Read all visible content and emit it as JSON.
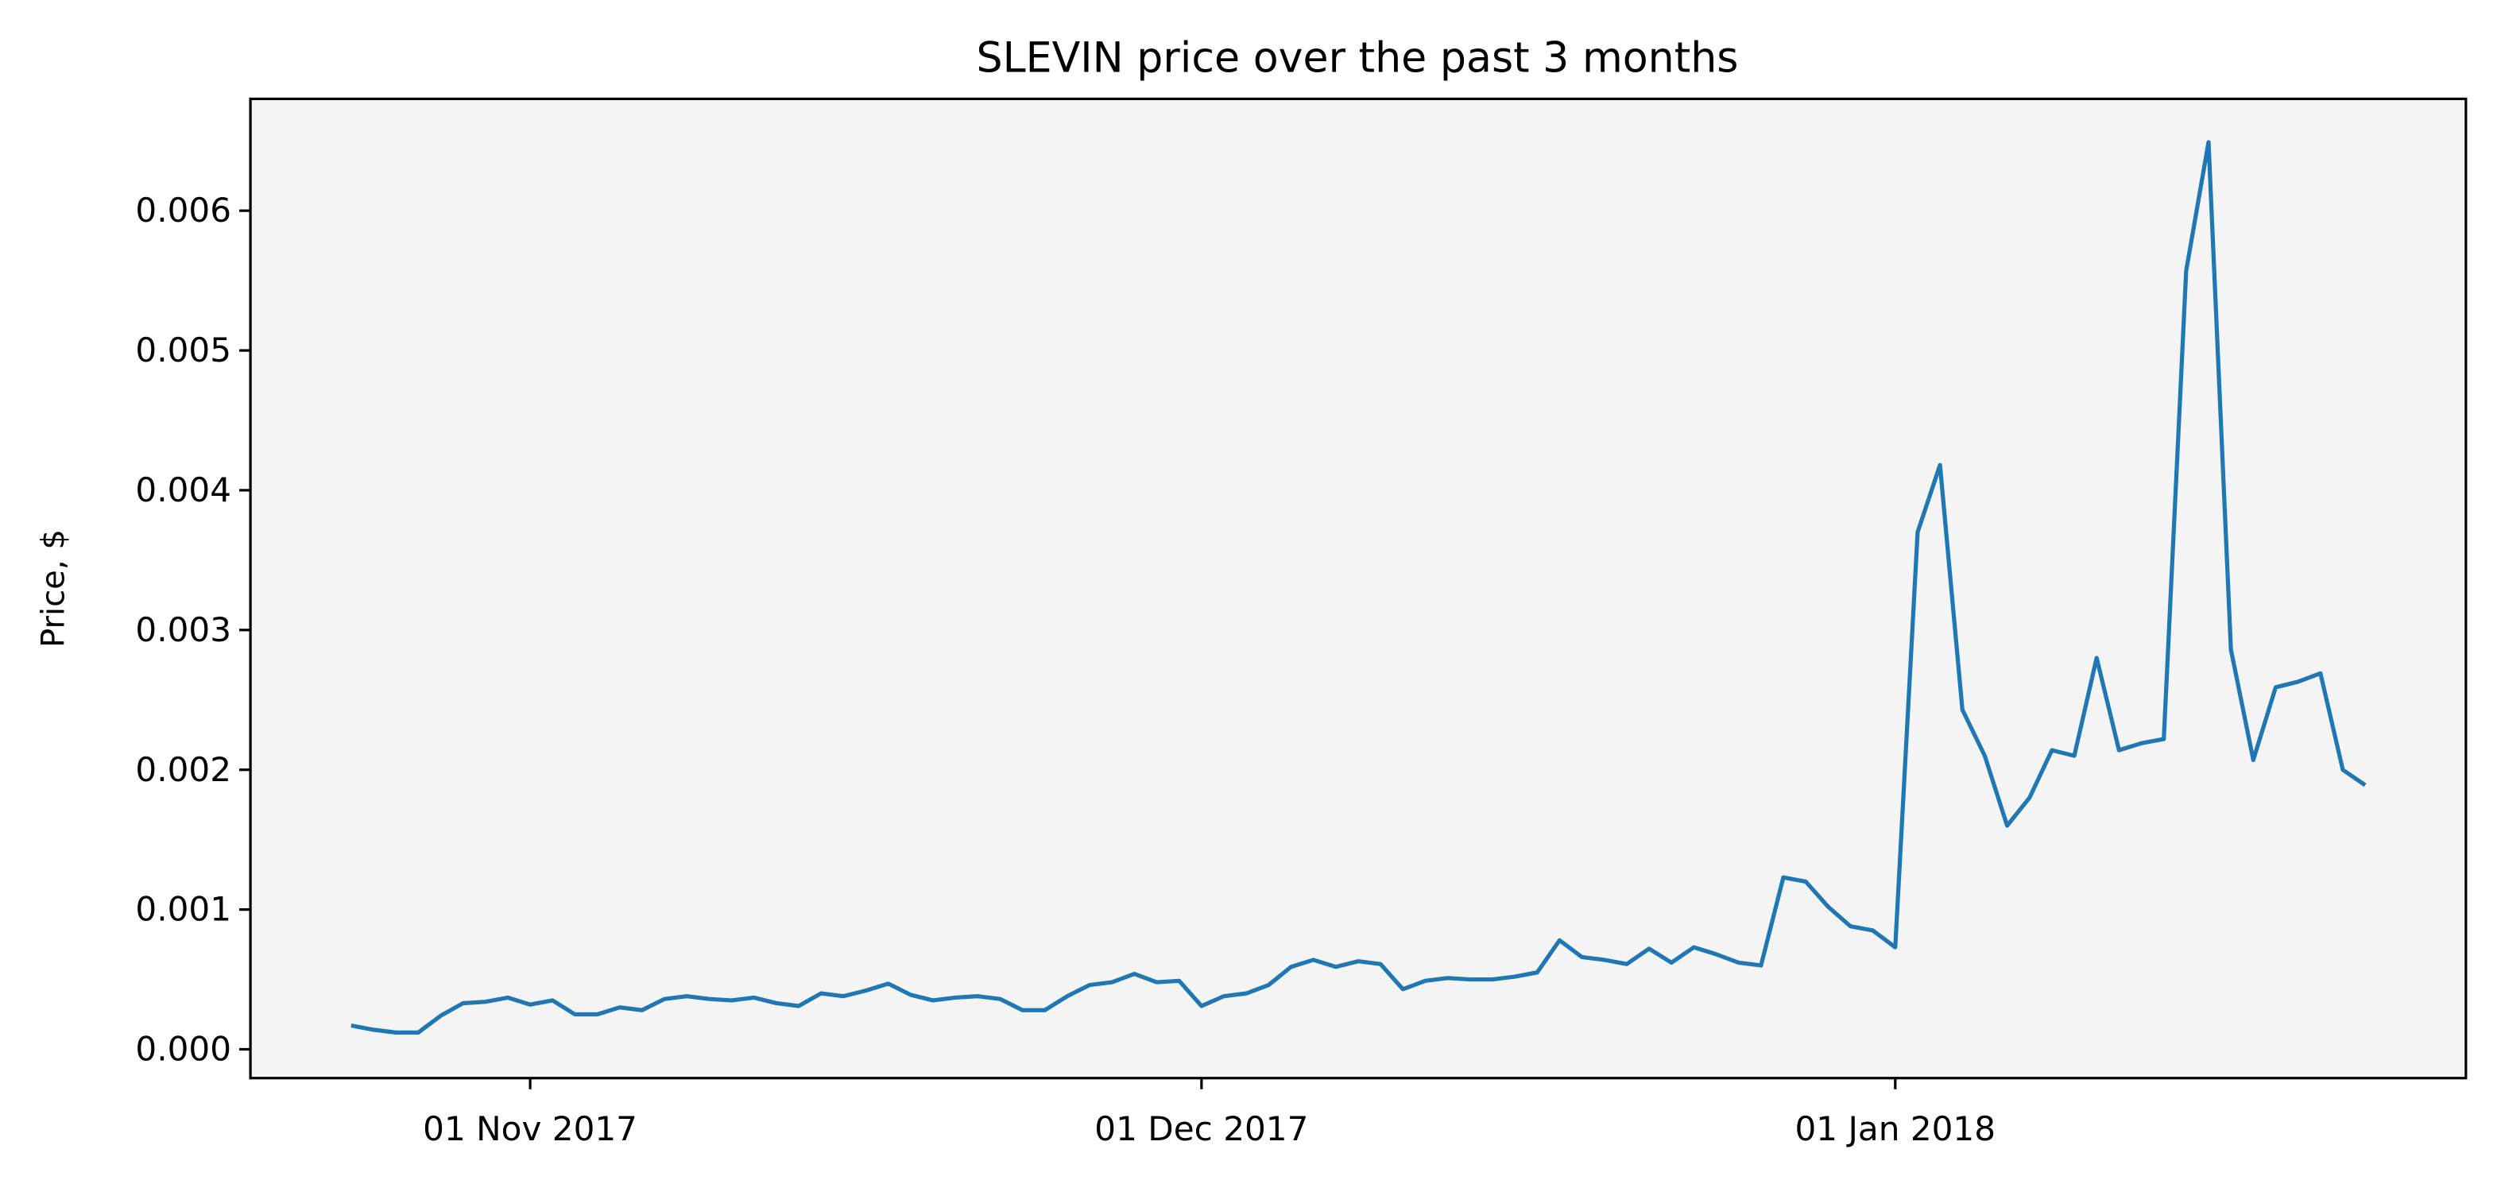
{
  "chart_data": {
    "type": "line",
    "title": "SLEVIN price over the past 3 months",
    "y_label": "Price, $",
    "x": [
      "2017-10-24",
      "2017-10-25",
      "2017-10-26",
      "2017-10-27",
      "2017-10-28",
      "2017-10-29",
      "2017-10-30",
      "2017-10-31",
      "2017-11-01",
      "2017-11-02",
      "2017-11-03",
      "2017-11-04",
      "2017-11-05",
      "2017-11-06",
      "2017-11-07",
      "2017-11-08",
      "2017-11-09",
      "2017-11-10",
      "2017-11-11",
      "2017-11-12",
      "2017-11-13",
      "2017-11-14",
      "2017-11-15",
      "2017-11-16",
      "2017-11-17",
      "2017-11-18",
      "2017-11-19",
      "2017-11-20",
      "2017-11-21",
      "2017-11-22",
      "2017-11-23",
      "2017-11-24",
      "2017-11-25",
      "2017-11-26",
      "2017-11-27",
      "2017-11-28",
      "2017-11-29",
      "2017-11-30",
      "2017-12-01",
      "2017-12-02",
      "2017-12-03",
      "2017-12-04",
      "2017-12-05",
      "2017-12-06",
      "2017-12-07",
      "2017-12-08",
      "2017-12-09",
      "2017-12-10",
      "2017-12-11",
      "2017-12-12",
      "2017-12-13",
      "2017-12-14",
      "2017-12-15",
      "2017-12-16",
      "2017-12-17",
      "2017-12-18",
      "2017-12-19",
      "2017-12-20",
      "2017-12-21",
      "2017-12-22",
      "2017-12-23",
      "2017-12-24",
      "2017-12-25",
      "2017-12-26",
      "2017-12-27",
      "2017-12-28",
      "2017-12-29",
      "2017-12-30",
      "2017-12-31",
      "2018-01-01",
      "2018-01-02",
      "2018-01-03",
      "2018-01-04",
      "2018-01-05",
      "2018-01-06",
      "2018-01-07",
      "2018-01-08",
      "2018-01-09",
      "2018-01-10",
      "2018-01-11",
      "2018-01-12",
      "2018-01-13",
      "2018-01-14",
      "2018-01-15",
      "2018-01-16",
      "2018-01-17",
      "2018-01-18",
      "2018-01-19",
      "2018-01-20",
      "2018-01-21",
      "2018-01-22"
    ],
    "series": [
      {
        "name": "SLEVIN",
        "color": "#1f77b4",
        "values": [
          0.00017,
          0.00014,
          0.00012,
          0.00012,
          0.00024,
          0.00033,
          0.00034,
          0.00037,
          0.00032,
          0.00035,
          0.00025,
          0.00025,
          0.0003,
          0.00028,
          0.00036,
          0.00038,
          0.00036,
          0.00035,
          0.00037,
          0.00033,
          0.00031,
          0.0004,
          0.00038,
          0.00042,
          0.00047,
          0.00039,
          0.00035,
          0.00037,
          0.00038,
          0.00036,
          0.00028,
          0.00028,
          0.00038,
          0.00046,
          0.00048,
          0.00054,
          0.00048,
          0.00049,
          0.00031,
          0.00038,
          0.0004,
          0.00046,
          0.00059,
          0.00064,
          0.00059,
          0.00063,
          0.00061,
          0.00043,
          0.00049,
          0.00051,
          0.0005,
          0.0005,
          0.00052,
          0.00055,
          0.00078,
          0.00066,
          0.00064,
          0.00061,
          0.00072,
          0.00062,
          0.00073,
          0.00068,
          0.00062,
          0.0006,
          0.00123,
          0.0012,
          0.00102,
          0.00088,
          0.00085,
          0.00073,
          0.0037,
          0.00418,
          0.00243,
          0.0021,
          0.0016,
          0.0018,
          0.00214,
          0.0021,
          0.0028,
          0.00214,
          0.00219,
          0.00222,
          0.00557,
          0.00649,
          0.00286,
          0.00207,
          0.00259,
          0.00263,
          0.00269,
          0.002,
          0.00189
        ]
      }
    ],
    "xlim": [
      "2017-10-19T12:00:00Z",
      "2018-01-26T12:00:00Z"
    ],
    "xticks": [
      {
        "value": "2017-11-01",
        "label": "01 Nov 2017"
      },
      {
        "value": "2017-12-01",
        "label": "01 Dec 2017"
      },
      {
        "value": "2018-01-01",
        "label": "01 Jan 2018"
      }
    ],
    "ylim": [
      -0.000206,
      0.0068
    ],
    "yticks": [
      {
        "value": 0,
        "label": "0.000"
      },
      {
        "value": 0.001,
        "label": "0.001"
      },
      {
        "value": 0.002,
        "label": "0.002"
      },
      {
        "value": 0.003,
        "label": "0.003"
      },
      {
        "value": 0.004,
        "label": "0.004"
      },
      {
        "value": 0.005,
        "label": "0.005"
      },
      {
        "value": 0.006,
        "label": "0.006"
      }
    ],
    "background": "#f4f4f4"
  }
}
